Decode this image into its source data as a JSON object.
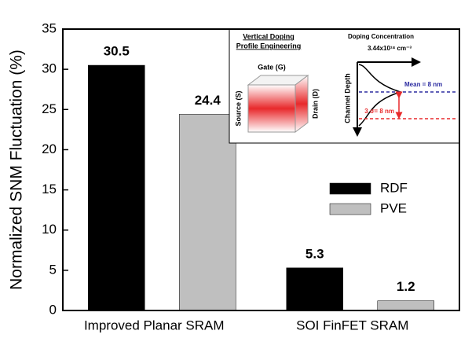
{
  "chart_data": {
    "type": "bar",
    "y_label": "Normalized SNM Fluctuation (%)",
    "categories": [
      "Improved Planar SRAM",
      "SOI FinFET SRAM"
    ],
    "series": [
      {
        "name": "RDF",
        "color": "#000000",
        "values": [
          30.5,
          5.3
        ]
      },
      {
        "name": "PVE",
        "color": "#bfbfbf",
        "values": [
          24.4,
          1.2
        ]
      }
    ],
    "ylim": [
      0,
      35
    ],
    "yticks": [
      0,
      5,
      10,
      15,
      20,
      25,
      30,
      35
    ],
    "legend": "right",
    "inset": {
      "title": [
        "Vertical Doping",
        "Profile Engineering"
      ],
      "gate": "Gate (G)",
      "source": "Source (S)",
      "drain": "Drain (D)",
      "profile_title": "Doping Concentration",
      "peak": "3.44x10¹⁸ cm⁻³",
      "depth_axis": "Channel Depth",
      "mean": "Mean = 8 nm",
      "sigma": "3 σ= 8 nm"
    }
  }
}
